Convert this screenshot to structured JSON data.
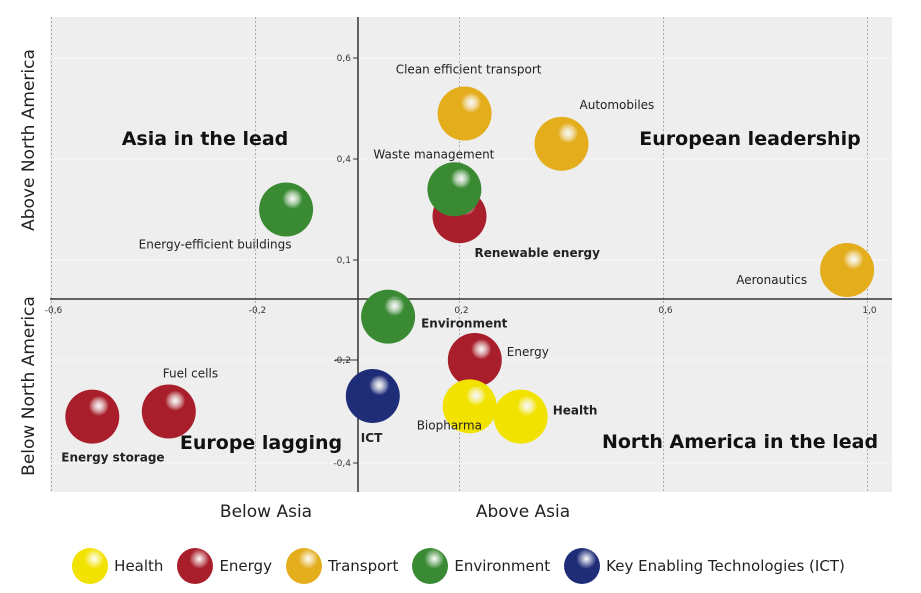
{
  "chart_data": {
    "type": "scatter",
    "title": "",
    "xlabel_left": "Below Asia",
    "xlabel_right": "Above Asia",
    "ylabel_top": "Above North America",
    "ylabel_bottom": "Below North America",
    "xlim": [
      -0.6,
      1.05
    ],
    "x_ticks": [
      {
        "v": -0.6,
        "label": "-0,6"
      },
      {
        "v": -0.2,
        "label": "-0,2"
      },
      {
        "v": 0.2,
        "label": "0,2"
      },
      {
        "v": 0.6,
        "label": "0,6"
      },
      {
        "v": 1.0,
        "label": "1,0"
      }
    ],
    "y_ticks": [
      {
        "v": 0.6,
        "label": "0,6"
      },
      {
        "v": 0.4,
        "label": "0,4"
      },
      {
        "v": 0.1,
        "label": "0,1"
      },
      {
        "v": -0.2,
        "label": "-0,2"
      },
      {
        "v": -0.4,
        "label": "-0,4"
      }
    ],
    "grid": true,
    "quadrants": {
      "top_left": "Asia in the lead",
      "top_right": "European leadership",
      "bottom_left": "Europe lagging",
      "bottom_right": "North America in the lead"
    },
    "categories": [
      {
        "name": "Health",
        "color": "#f2e200"
      },
      {
        "name": "Energy",
        "color": "#a81e2a"
      },
      {
        "name": "Transport",
        "color": "#e3ad1c"
      },
      {
        "name": "Environment",
        "color": "#3a8a34"
      },
      {
        "name": "Key Enabling Technologies (ICT)",
        "color": "#1f2d78"
      }
    ],
    "points": [
      {
        "label": "Clean efficient transport",
        "category": "Transport",
        "x": 0.21,
        "y": 0.49
      },
      {
        "label": "Automobiles",
        "category": "Transport",
        "x": 0.4,
        "y": 0.43
      },
      {
        "label": "Renewable energy",
        "category": "Energy",
        "x": 0.2,
        "y": 0.23
      },
      {
        "label": "Waste management",
        "category": "Environment",
        "x": 0.19,
        "y": 0.31
      },
      {
        "label": "Energy-efficient buildings",
        "category": "Environment",
        "x": -0.14,
        "y": 0.25
      },
      {
        "label": "Aeronautics",
        "category": "Transport",
        "x": 0.96,
        "y": 0.07
      },
      {
        "label": "Environment",
        "category": "Environment",
        "x": 0.06,
        "y": -0.07
      },
      {
        "label": "Energy",
        "category": "Energy",
        "x": 0.23,
        "y": -0.2
      },
      {
        "label": "ICT",
        "category": "Key Enabling Technologies (ICT)",
        "x": 0.03,
        "y": -0.27
      },
      {
        "label": "Biopharma",
        "category": "Health",
        "x": 0.22,
        "y": -0.29
      },
      {
        "label": "Health",
        "category": "Health",
        "x": 0.32,
        "y": -0.31
      },
      {
        "label": "Energy storage",
        "category": "Energy",
        "x": -0.52,
        "y": -0.31
      },
      {
        "label": "Fuel cells",
        "category": "Energy",
        "x": -0.37,
        "y": -0.3
      }
    ],
    "legend_position": "bottom"
  }
}
